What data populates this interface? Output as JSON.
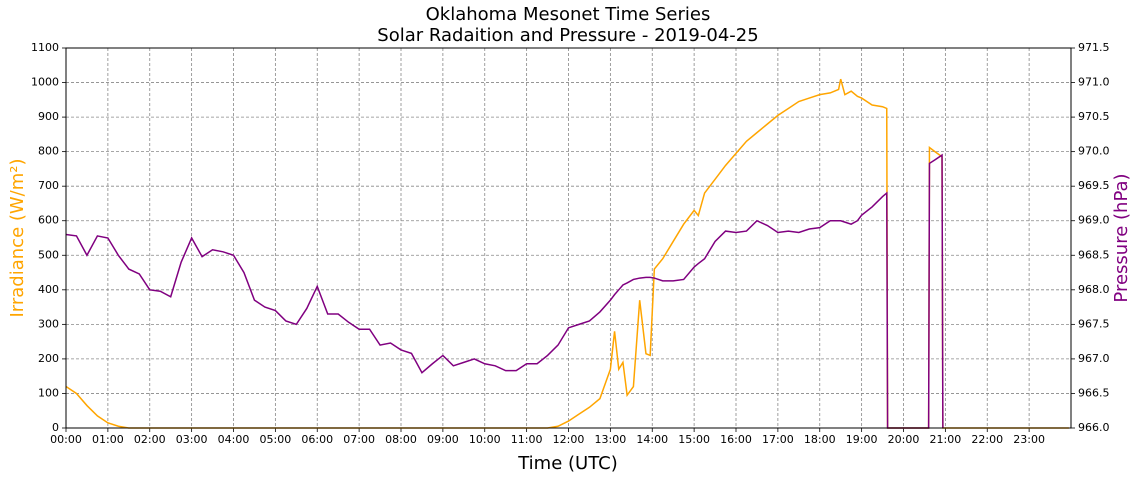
{
  "chart_data": {
    "type": "line",
    "title": "Oklahoma Mesonet Time Series",
    "subtitle": "Solar Radaition and Pressure - 2019-04-25",
    "x_label": "Time (UTC)",
    "y_label": "Irradiance (W/m²)",
    "y2_label": "Pressure (hPa)",
    "grid": true,
    "x": [
      0,
      0.25,
      0.5,
      0.75,
      1,
      1.25,
      1.5,
      1.75,
      2,
      2.25,
      2.5,
      2.75,
      3,
      3.25,
      3.5,
      3.75,
      4,
      4.25,
      4.5,
      4.75,
      5,
      5.25,
      5.5,
      5.75,
      6,
      6.25,
      6.5,
      6.75,
      7,
      7.25,
      7.5,
      7.75,
      8,
      8.25,
      8.5,
      8.75,
      9,
      9.25,
      9.5,
      9.75,
      10,
      10.25,
      10.5,
      10.75,
      11,
      11.25,
      11.5,
      11.75,
      12,
      12.25,
      12.5,
      12.75,
      13,
      13.1,
      13.2,
      13.3,
      13.4,
      13.55,
      13.7,
      13.85,
      13.95,
      14.05,
      14.25,
      14.5,
      14.75,
      15,
      15.1,
      15.25,
      15.5,
      15.75,
      16,
      16.25,
      16.5,
      16.75,
      17,
      17.25,
      17.5,
      17.75,
      18,
      18.25,
      18.45,
      18.5,
      18.6,
      18.75,
      18.9,
      19,
      19.25,
      19.5,
      19.6,
      19.62,
      20,
      20.6,
      20.62,
      20.75,
      20.92,
      20.94,
      21,
      22,
      23,
      23.95
    ],
    "series": [
      {
        "color": "#ffa500",
        "values": [
          120,
          100,
          65,
          35,
          15,
          5,
          0,
          0,
          0,
          0,
          0,
          0,
          0,
          0,
          0,
          0,
          0,
          0,
          0,
          0,
          0,
          0,
          0,
          0,
          0,
          0,
          0,
          0,
          0,
          0,
          0,
          0,
          0,
          0,
          0,
          0,
          0,
          0,
          0,
          0,
          0,
          0,
          0,
          0,
          0,
          0,
          0,
          5,
          20,
          40,
          60,
          85,
          170,
          280,
          170,
          190,
          95,
          120,
          370,
          215,
          210,
          460,
          490,
          540,
          590,
          630,
          615,
          680,
          720,
          760,
          795,
          830,
          855,
          880,
          905,
          925,
          945,
          955,
          965,
          970,
          980,
          1010,
          965,
          975,
          960,
          955,
          935,
          930,
          925,
          0,
          0,
          0,
          812,
          800,
          785,
          0,
          0,
          0,
          0,
          0
        ]
      },
      {
        "color": "#800080",
        "axis": "y2",
        "values": [
          968.8,
          968.78,
          968.5,
          968.78,
          968.75,
          968.5,
          968.3,
          968.23,
          968.0,
          967.98,
          967.9,
          968.4,
          968.75,
          968.48,
          968.58,
          968.55,
          968.5,
          968.25,
          967.85,
          967.75,
          967.7,
          967.55,
          967.5,
          967.73,
          968.05,
          967.65,
          967.65,
          967.53,
          967.43,
          967.43,
          967.2,
          967.23,
          967.13,
          967.08,
          966.8,
          966.93,
          967.05,
          966.9,
          966.95,
          967.0,
          966.93,
          966.9,
          966.83,
          966.83,
          966.93,
          966.93,
          967.05,
          967.2,
          967.45,
          967.5,
          967.55,
          967.68,
          967.85,
          967.93,
          968.0,
          968.07,
          968.1,
          968.15,
          968.17,
          968.18,
          968.18,
          968.17,
          968.13,
          968.13,
          968.15,
          968.33,
          968.38,
          968.45,
          968.7,
          968.85,
          968.83,
          968.85,
          969.0,
          968.93,
          968.83,
          968.85,
          968.83,
          968.88,
          968.9,
          969.0,
          969.0,
          969.0,
          968.98,
          968.95,
          969.0,
          969.08,
          969.2,
          969.35,
          969.4,
          966.0,
          966.0,
          966.0,
          969.83,
          969.88,
          969.95,
          966.0,
          null,
          null,
          null,
          null
        ]
      }
    ],
    "xlim": [
      0,
      24
    ],
    "xticks": [
      {
        "value": 0,
        "label": "00:00"
      },
      {
        "value": 1,
        "label": "01:00"
      },
      {
        "value": 2,
        "label": "02:00"
      },
      {
        "value": 3,
        "label": "03:00"
      },
      {
        "value": 4,
        "label": "04:00"
      },
      {
        "value": 5,
        "label": "05:00"
      },
      {
        "value": 6,
        "label": "06:00"
      },
      {
        "value": 7,
        "label": "07:00"
      },
      {
        "value": 8,
        "label": "08:00"
      },
      {
        "value": 9,
        "label": "09:00"
      },
      {
        "value": 10,
        "label": "10:00"
      },
      {
        "value": 11,
        "label": "11:00"
      },
      {
        "value": 12,
        "label": "12:00"
      },
      {
        "value": 13,
        "label": "13:00"
      },
      {
        "value": 14,
        "label": "14:00"
      },
      {
        "value": 15,
        "label": "15:00"
      },
      {
        "value": 16,
        "label": "16:00"
      },
      {
        "value": 17,
        "label": "17:00"
      },
      {
        "value": 18,
        "label": "18:00"
      },
      {
        "value": 19,
        "label": "19:00"
      },
      {
        "value": 20,
        "label": "20:00"
      },
      {
        "value": 21,
        "label": "21:00"
      },
      {
        "value": 22,
        "label": "22:00"
      },
      {
        "value": 23,
        "label": "23:00"
      }
    ],
    "ylim": [
      0,
      1100
    ],
    "yticks": [
      0,
      100,
      200,
      300,
      400,
      500,
      600,
      700,
      800,
      900,
      1000,
      1100
    ],
    "y2lim": [
      966,
      971.5
    ],
    "y2ticks": [
      {
        "value": 966,
        "label": "966.0"
      },
      966.5,
      {
        "value": 967,
        "label": "967.0"
      },
      967.5,
      {
        "value": 968,
        "label": "968.0"
      },
      968.5,
      {
        "value": 969,
        "label": "969.0"
      },
      969.5,
      {
        "value": 970,
        "label": "970.0"
      },
      970.5,
      {
        "value": 971,
        "label": "971.0"
      },
      971.5
    ]
  }
}
